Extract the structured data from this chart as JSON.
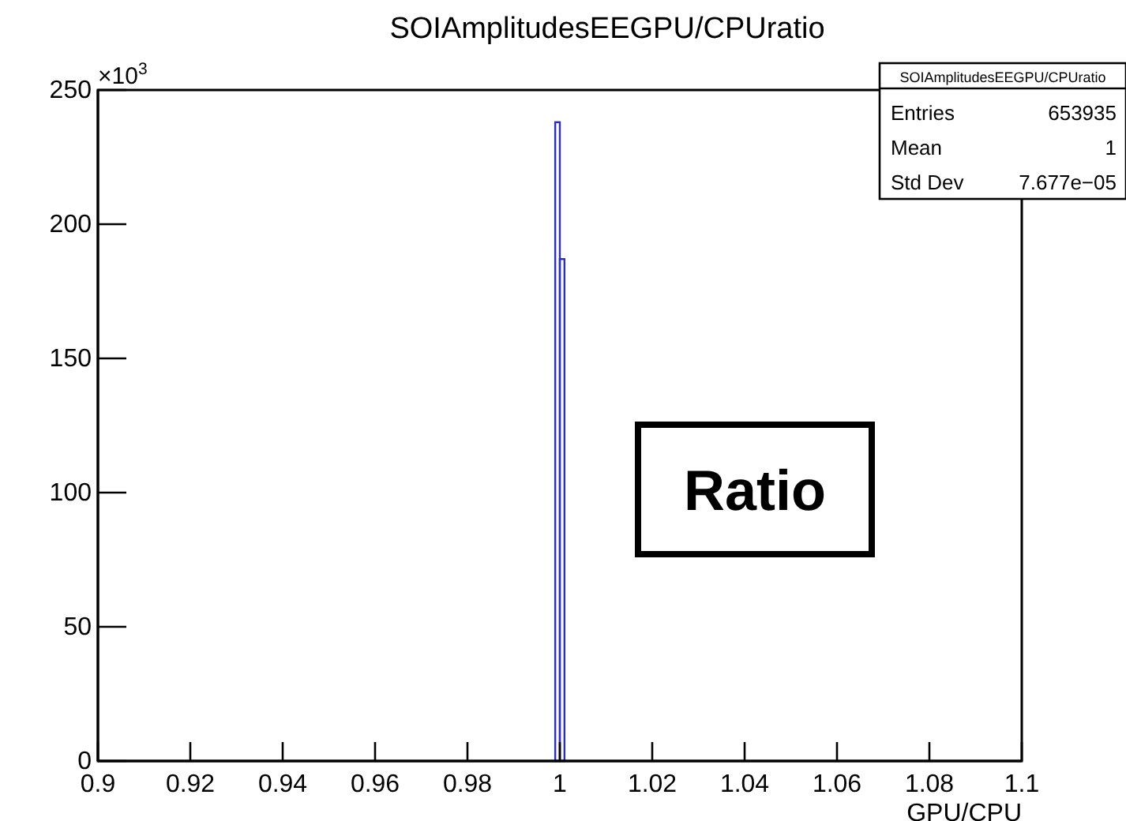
{
  "chart_data": {
    "type": "histogram",
    "title": "SOIAmplitudesEEGPU/CPUratio",
    "xlabel": "GPU/CPU",
    "bins": [
      0.999,
      1.0,
      1.001
    ],
    "values": [
      238,
      187
    ],
    "color": "#2b2bc8",
    "xlim": [
      0.9,
      1.1
    ],
    "xticks": [
      0.9,
      0.92,
      0.94,
      0.96,
      0.98,
      1,
      1.02,
      1.04,
      1.06,
      1.08,
      1.1
    ],
    "ylim": [
      0,
      250
    ],
    "yticks": [
      0,
      50,
      100,
      150,
      200,
      250
    ],
    "annotations": [
      "×10$^{3}$",
      "SOIAmplitudesEEGPU/CPUratio",
      "Entries",
      "653935",
      "Mean",
      "1",
      "Std Dev",
      "7.677e−05",
      "Ratio"
    ]
  }
}
